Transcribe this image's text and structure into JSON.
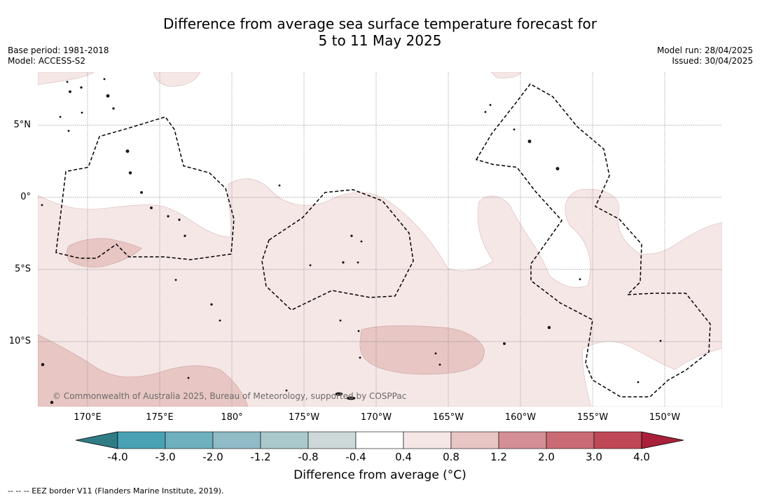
{
  "title": {
    "line1": "Difference from average sea surface temperature forecast for",
    "line2": "5 to 11 May 2025"
  },
  "meta_left": {
    "base_period": "Base period: 1981-2018",
    "model": "Model: ACCESS-S2"
  },
  "meta_right": {
    "model_run": "Model run: 28/04/2025",
    "issued": "Issued: 30/04/2025"
  },
  "map": {
    "lat_labels": [
      "5°N",
      "0°",
      "5°S",
      "10°S"
    ],
    "lon_labels": [
      "170°E",
      "175°E",
      "180°",
      "175°W",
      "170°W",
      "165°W",
      "160°W",
      "155°W",
      "150°W"
    ],
    "copyright": "© Commonwealth of Australia 2025, Bureau of Meteorology, supported by COSPPac",
    "shading_colors": {
      "band_0_4_to_0_8": "#f5e7e6",
      "band_0_8_to_1_2": "#e7c6c3"
    }
  },
  "colorbar": {
    "ticks": [
      "-4.0",
      "-3.0",
      "-2.0",
      "-1.2",
      "-0.8",
      "-0.4",
      "0.4",
      "0.8",
      "1.2",
      "2.0",
      "3.0",
      "4.0"
    ],
    "colors": [
      "#2f7c86",
      "#49a2b4",
      "#6fb0bf",
      "#8fbcc6",
      "#aac9cd",
      "#cdd9d9",
      "#ffffff",
      "#f5e7e6",
      "#e7c6c3",
      "#d48f96",
      "#c96a74",
      "#bf4856",
      "#a8203a"
    ],
    "label": "Difference from average (°C)"
  },
  "footnote": "-- -- -- EEZ border V11 (Flanders Marine Institute, 2019)."
}
